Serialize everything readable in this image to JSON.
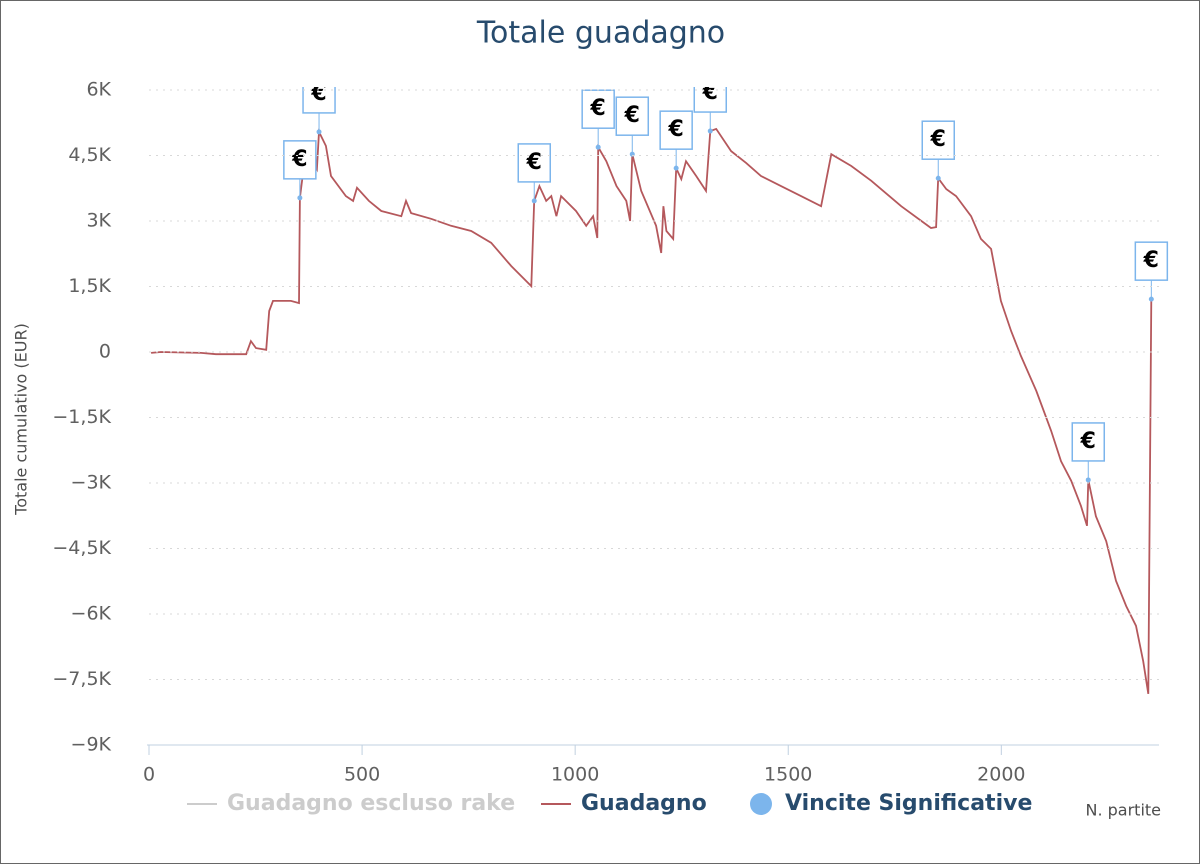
{
  "chart_data": {
    "type": "line",
    "title": "Totale guadagno",
    "y_axis_title": "Totale cumulativo (EUR)",
    "x_axis_title": "N. partite",
    "xlim": [
      0,
      2370
    ],
    "ylim": [
      -9000,
      6000
    ],
    "xticks": [
      0,
      500,
      1000,
      1500,
      2000
    ],
    "yticks": [
      {
        "value": -9000,
        "label": "−9K"
      },
      {
        "value": -7500,
        "label": "−7,5K"
      },
      {
        "value": -6000,
        "label": "−6K"
      },
      {
        "value": -4500,
        "label": "−4,5K"
      },
      {
        "value": -3000,
        "label": "−3K"
      },
      {
        "value": -1500,
        "label": "−1,5K"
      },
      0,
      {
        "value": 1500,
        "label": "1,5K"
      },
      {
        "value": 3000,
        "label": "3K"
      },
      {
        "value": 4500,
        "label": "4,5K"
      },
      {
        "value": 6000,
        "label": "6K"
      }
    ],
    "grid": true,
    "legend": "bottom",
    "series": [
      {
        "name": "Guadagno escluso rake",
        "color": "#cccccc",
        "visible": false
      },
      {
        "name": "Guadagno",
        "color": "#b5585c",
        "visible": true,
        "x": [
          5,
          28,
          122,
          157,
          228,
          239,
          251,
          275,
          282,
          291,
          333,
          352,
          354,
          368,
          385,
          394,
          399,
          415,
          427,
          462,
          479,
          488,
          516,
          545,
          592,
          603,
          615,
          662,
          709,
          756,
          803,
          850,
          897,
          904,
          916,
          932,
          944,
          956,
          967,
          1002,
          1026,
          1042,
          1052,
          1054,
          1073,
          1097,
          1120,
          1129,
          1134,
          1155,
          1190,
          1202,
          1207,
          1214,
          1230,
          1237,
          1249,
          1260,
          1284,
          1307,
          1317,
          1331,
          1366,
          1401,
          1436,
          1483,
          1530,
          1577,
          1601,
          1648,
          1695,
          1765,
          1835,
          1847,
          1852,
          1871,
          1894,
          1929,
          1952,
          1976,
          1999,
          2023,
          2046,
          2082,
          2117,
          2140,
          2164,
          2187,
          2201,
          2204,
          2222,
          2246,
          2269,
          2293,
          2316,
          2333,
          2345,
          2352
        ],
        "values": [
          -20,
          0,
          -20,
          -50,
          -50,
          250,
          90,
          50,
          940,
          1170,
          1170,
          1120,
          3530,
          4600,
          4370,
          4190,
          5040,
          4720,
          4030,
          3570,
          3460,
          3760,
          3460,
          3230,
          3110,
          3460,
          3180,
          3050,
          2890,
          2770,
          2500,
          1970,
          1510,
          3460,
          3800,
          3460,
          3570,
          3110,
          3570,
          3230,
          2890,
          3110,
          2610,
          4690,
          4370,
          3800,
          3460,
          3000,
          4530,
          3690,
          2890,
          2270,
          3340,
          2770,
          2590,
          4210,
          3960,
          4370,
          4030,
          3690,
          5060,
          5110,
          4600,
          4330,
          4030,
          3800,
          3570,
          3340,
          4530,
          4260,
          3920,
          3340,
          2840,
          2860,
          3980,
          3730,
          3570,
          3110,
          2590,
          2360,
          1170,
          480,
          -90,
          -890,
          -1810,
          -2500,
          -2950,
          -3530,
          -3980,
          -2930,
          -3760,
          -4330,
          -5240,
          -5820,
          -6270,
          -7080,
          -7830,
          1210
        ]
      },
      {
        "name": "Vincite Significative",
        "color": "#7cb5ec",
        "visible": true,
        "type": "scatter",
        "flag_label": "€",
        "x": [
          354,
          399,
          904,
          1054,
          1134,
          1237,
          1317,
          1852,
          2204,
          2352
        ],
        "values": [
          3530,
          5040,
          3460,
          4690,
          4530,
          4210,
          5060,
          3980,
          -2930,
          1210
        ]
      }
    ]
  }
}
